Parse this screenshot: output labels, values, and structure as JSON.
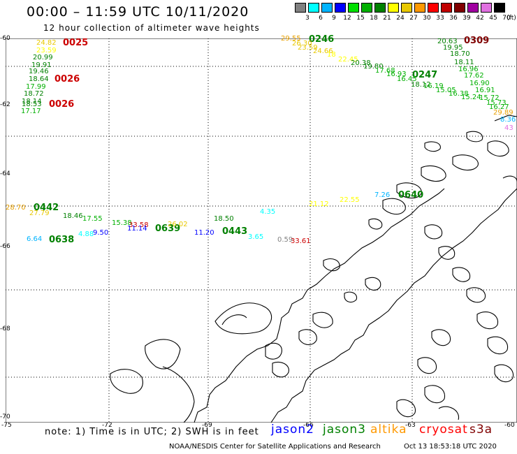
{
  "title": "00:00 – 11:59 UTC 10/11/2020",
  "subtitle": "12 hour collection of altimeter wave heights",
  "colorbar": {
    "unit_label": "(ft)",
    "stops": [
      {
        "label": "3",
        "color": "#808080"
      },
      {
        "label": "6",
        "color": "#00ffff"
      },
      {
        "label": "9",
        "color": "#00b4ff"
      },
      {
        "label": "12",
        "color": "#0000ff"
      },
      {
        "label": "15",
        "color": "#00e000"
      },
      {
        "label": "18",
        "color": "#00b000"
      },
      {
        "label": "21",
        "color": "#008000"
      },
      {
        "label": "24",
        "color": "#ffff00"
      },
      {
        "label": "27",
        "color": "#e8c800"
      },
      {
        "label": "30",
        "color": "#ff9900"
      },
      {
        "label": "33",
        "color": "#ff0000"
      },
      {
        "label": "36",
        "color": "#c00000"
      },
      {
        "label": "39",
        "color": "#800000"
      },
      {
        "label": "42",
        "color": "#a000a0"
      },
      {
        "label": "45",
        "color": "#e070e0"
      },
      {
        "label": "70",
        "color": "#000000"
      }
    ]
  },
  "lat_labels": [
    "-60",
    "-62",
    "-64",
    "-66",
    "-68",
    "-70"
  ],
  "lon_labels": [
    "-75",
    "-72",
    "-69",
    "-66",
    "-63",
    "-60"
  ],
  "observations": [
    {
      "t": "24.82",
      "c": "#e8c800"
    },
    {
      "t": "0025",
      "c": "#cc0000",
      "id": true
    },
    {
      "t": "23.59",
      "c": "#ffff00"
    },
    {
      "t": "20.99",
      "c": "#008000"
    },
    {
      "t": "19.91",
      "c": "#008000"
    },
    {
      "t": "19.46",
      "c": "#008000"
    },
    {
      "t": "18.64",
      "c": "#008000"
    },
    {
      "t": "0026",
      "c": "#cc0000",
      "id": true
    },
    {
      "t": "17.99",
      "c": "#00b000"
    },
    {
      "t": "18.72",
      "c": "#008000"
    },
    {
      "t": "18.14",
      "c": "#008000"
    },
    {
      "t": "18.53",
      "c": "#008000"
    },
    {
      "t": "0026",
      "c": "#cc0000",
      "id": true
    },
    {
      "t": "17.17",
      "c": "#00b000"
    },
    {
      "t": "29.55",
      "c": "#e8a000"
    },
    {
      "t": "0246",
      "c": "#008000",
      "id": true
    },
    {
      "t": "26.30",
      "c": "#e8c800"
    },
    {
      "t": "23.59",
      "c": "#e8c800"
    },
    {
      "t": "24.66",
      "c": "#e8c800"
    },
    {
      "t": "18",
      "c": "#ffff00"
    },
    {
      "t": "22.45",
      "c": "#ffff00"
    },
    {
      "t": "20.38",
      "c": "#008000"
    },
    {
      "t": "19.80",
      "c": "#008000"
    },
    {
      "t": "17.68",
      "c": "#00b000"
    },
    {
      "t": "16.93",
      "c": "#00b000"
    },
    {
      "t": "0247",
      "c": "#008000",
      "id": true
    },
    {
      "t": "16.45",
      "c": "#00b000"
    },
    {
      "t": "18.12",
      "c": "#008000"
    },
    {
      "t": "16.19",
      "c": "#00b000"
    },
    {
      "t": "15.05",
      "c": "#00b000"
    },
    {
      "t": "16.38",
      "c": "#00b000"
    },
    {
      "t": "15.24",
      "c": "#00b000"
    },
    {
      "t": "20.63",
      "c": "#008000"
    },
    {
      "t": "0309",
      "c": "#800000",
      "id": true
    },
    {
      "t": "19.95",
      "c": "#008000"
    },
    {
      "t": "18.70",
      "c": "#008000"
    },
    {
      "t": "18.11",
      "c": "#008000"
    },
    {
      "t": "16.96",
      "c": "#00b000"
    },
    {
      "t": "17.62",
      "c": "#00b000"
    },
    {
      "t": "16.90",
      "c": "#00b000"
    },
    {
      "t": "16.91",
      "c": "#00b000"
    },
    {
      "t": "15.72",
      "c": "#00b000"
    },
    {
      "t": "15.73",
      "c": "#00b000"
    },
    {
      "t": "16.27",
      "c": "#00b000"
    },
    {
      "t": "29.89",
      "c": "#e8a000"
    },
    {
      "t": "8.36",
      "c": "#00b4ff"
    },
    {
      "t": "43",
      "c": "#e070e0"
    },
    {
      "t": "28.70",
      "c": "#e8a000"
    },
    {
      "t": "0442",
      "c": "#008000",
      "id": true
    },
    {
      "t": "27.79",
      "c": "#e8c800"
    },
    {
      "t": "18.46",
      "c": "#008000"
    },
    {
      "t": "17.55",
      "c": "#00b000"
    },
    {
      "t": "15.38",
      "c": "#00b000"
    },
    {
      "t": "33.58",
      "c": "#cc0000"
    },
    {
      "t": "11.14",
      "c": "#0000ff"
    },
    {
      "t": "0639",
      "c": "#008000",
      "id": true
    },
    {
      "t": "26.02",
      "c": "#e8c800"
    },
    {
      "t": "18.50",
      "c": "#008000"
    },
    {
      "t": "11.20",
      "c": "#0000ff"
    },
    {
      "t": "0443",
      "c": "#008000",
      "id": true
    },
    {
      "t": "4.35",
      "c": "#00ffff"
    },
    {
      "t": "3.65",
      "c": "#00ffff"
    },
    {
      "t": "0.59",
      "c": "#808080"
    },
    {
      "t": "33.61",
      "c": "#cc0000"
    },
    {
      "t": "6.64",
      "c": "#00b4ff"
    },
    {
      "t": "0638",
      "c": "#008000",
      "id": true
    },
    {
      "t": "4.88",
      "c": "#00ffff"
    },
    {
      "t": "9.50",
      "c": "#0000ff"
    },
    {
      "t": "21.12",
      "c": "#ffff00"
    },
    {
      "t": "22.55",
      "c": "#ffff00"
    },
    {
      "t": "7.26",
      "c": "#00b4ff"
    },
    {
      "t": "0640",
      "c": "#008000",
      "id": true
    }
  ],
  "note": "note:  1) Time is in UTC;  2) SWH is in feet",
  "legend": [
    {
      "name": "jason2",
      "color": "#0000ff"
    },
    {
      "name": "jason3",
      "color": "#008000"
    },
    {
      "name": "altika",
      "color": "#ff9900"
    },
    {
      "name": "cryosat",
      "color": "#ff0000"
    },
    {
      "name": "s3a",
      "color": "#800000"
    }
  ],
  "footer_left": "NOAA/NESDIS Center for Satellite Applications and Research",
  "footer_right": "Oct 13 18:53:18 UTC 2020"
}
